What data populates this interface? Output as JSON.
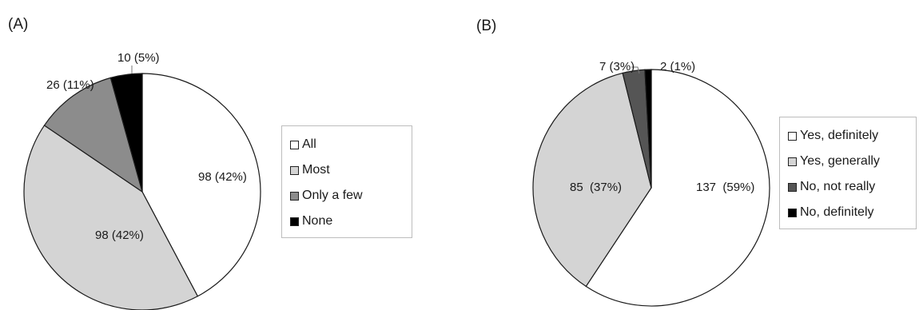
{
  "panel_a_label": "(A)",
  "panel_b_label": "(B)",
  "colors": {
    "white": "#ffffff",
    "light_gray": "#d4d4d4",
    "mid_gray": "#8c8c8c",
    "dark_gray": "#555555",
    "black": "#000000"
  },
  "chart_data": [
    {
      "type": "pie",
      "panel": "(A)",
      "categories": [
        "All",
        "Most",
        "Only a few",
        "None"
      ],
      "values": [
        98,
        98,
        26,
        10
      ],
      "data_labels": [
        "98 (42%)",
        "98 (42%)",
        "26 (11%)",
        "10 (5%)"
      ],
      "colors": [
        "#ffffff",
        "#d4d4d4",
        "#8c8c8c",
        "#000000"
      ],
      "start_angle_deg": 0,
      "direction": "clockwise",
      "legend_position": "right"
    },
    {
      "type": "pie",
      "panel": "(B)",
      "categories": [
        "Yes, definitely",
        "Yes, generally",
        "No, not really",
        "No, definitely"
      ],
      "values": [
        137,
        85,
        7,
        2
      ],
      "data_labels": [
        "137  (59%)",
        "85  (37%)",
        "7 (3%)",
        "2 (1%)"
      ],
      "colors": [
        "#ffffff",
        "#d4d4d4",
        "#555555",
        "#000000"
      ],
      "start_angle_deg": 0,
      "direction": "clockwise",
      "legend_position": "right"
    }
  ]
}
